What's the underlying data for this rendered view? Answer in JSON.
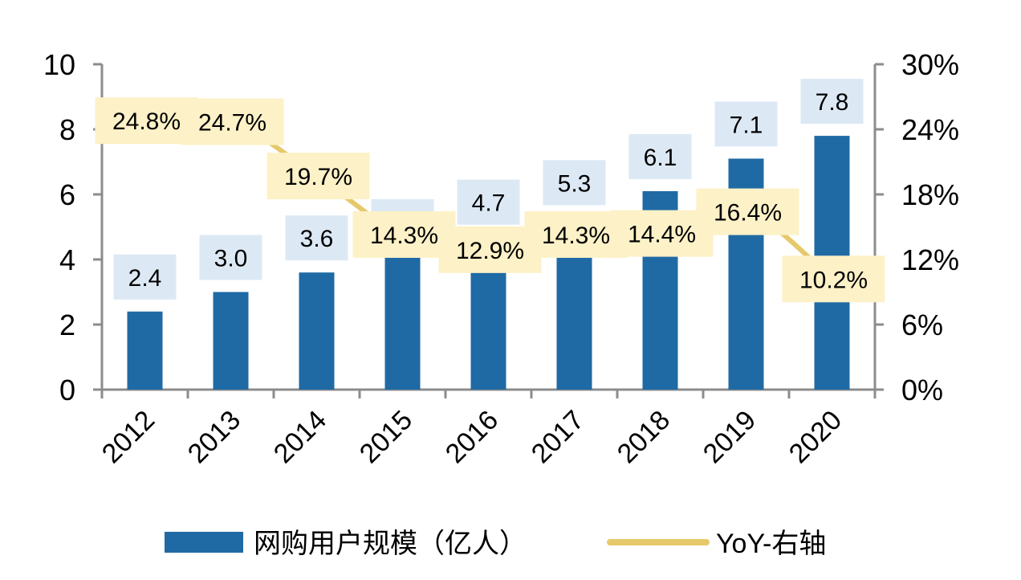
{
  "chart_data": {
    "type": "bar",
    "categories": [
      "2012",
      "2013",
      "2014",
      "2015",
      "2016",
      "2017",
      "2018",
      "2019",
      "2020"
    ],
    "series": [
      {
        "name": "网购用户规模（亿人）",
        "kind": "bar",
        "axis": "left",
        "color": "#1f6aa5",
        "values": [
          2.4,
          3.0,
          3.6,
          4.1,
          4.7,
          5.3,
          6.1,
          7.1,
          7.8
        ],
        "labels": [
          "2.4",
          "3.0",
          "3.6",
          "4.1",
          "4.7",
          "5.3",
          "6.1",
          "7.1",
          "7.8"
        ]
      },
      {
        "name": "YoY-右轴",
        "kind": "line",
        "axis": "right",
        "color": "#e6c96a",
        "values": [
          24.8,
          24.7,
          19.7,
          14.3,
          12.9,
          14.3,
          14.4,
          16.4,
          10.2
        ],
        "labels": [
          "24.8%",
          "24.7%",
          "19.7%",
          "14.3%",
          "12.9%",
          "14.3%",
          "14.4%",
          "16.4%",
          "10.2%"
        ]
      }
    ],
    "ylim": [
      0,
      10
    ],
    "y_ticks": [
      "0",
      "2",
      "4",
      "6",
      "8",
      "10"
    ],
    "y2lim": [
      0,
      30
    ],
    "y2_ticks": [
      "0%",
      "6%",
      "12%",
      "18%",
      "24%",
      "30%"
    ],
    "bar_label_bg": "#dce9f5",
    "line_label_bg": "#fdf1c7",
    "legend_position": "bottom",
    "grid": false
  }
}
